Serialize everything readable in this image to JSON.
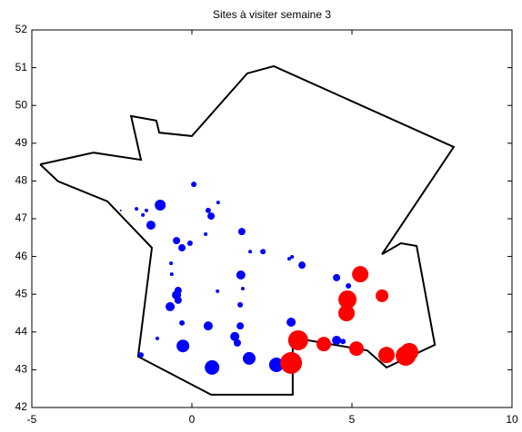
{
  "chart_data": {
    "type": "scatter",
    "title": "Sites à visiter semaine 3",
    "xlim": [
      -5,
      10
    ],
    "xticks": [
      -5,
      0,
      5,
      10
    ],
    "ylim": [
      42,
      52
    ],
    "yticks": [
      42,
      43,
      44,
      45,
      46,
      47,
      48,
      49,
      50,
      51,
      52
    ],
    "series": [
      {
        "mode": "line",
        "color": "#000000",
        "x": [
          -4.74,
          -3.07,
          -1.59,
          -1.9,
          -1.11,
          -1.02,
          0,
          1.73,
          2.56,
          8.18,
          5.94,
          6.53,
          7.02,
          7.59,
          6.08,
          5.48,
          3.15,
          3.15,
          0.6,
          -1.68,
          -1.25,
          -2.64,
          -4.18,
          -4.74
        ],
        "values": [
          48.44,
          48.75,
          48.56,
          49.72,
          49.6,
          49.28,
          49.19,
          50.85,
          51.04,
          48.9,
          46.06,
          46.35,
          46.28,
          43.66,
          43.06,
          43.51,
          43.85,
          42.34,
          42.34,
          43.35,
          46.23,
          47.46,
          47.99,
          48.44
        ]
      },
      {
        "mode": "markers",
        "color": "#0000ff",
        "x": [
          -0.99,
          -1.28,
          -1.53,
          -1.73,
          -1.42,
          0.06,
          0.51,
          0.6,
          0.82,
          -0.48,
          -0.31,
          -0.06,
          0.43,
          1.56,
          2.22,
          1.82,
          3.04,
          3.13,
          3.44,
          -0.65,
          -0.63,
          -0.43,
          -0.48,
          -0.43,
          -0.68,
          -0.31,
          1.53,
          0.8,
          1.59,
          1.51,
          0.51,
          1.51,
          1.34,
          1.42,
          -0.28,
          0.63,
          1.79,
          2.64,
          3.1,
          4.52,
          4.89,
          4.83,
          -1.08,
          -1.59,
          4.52,
          4.72,
          -2.22
        ],
        "values": [
          47.36,
          46.83,
          47.1,
          47.26,
          47.22,
          47.91,
          47.22,
          47.07,
          47.43,
          46.42,
          46.23,
          46.35,
          46.59,
          46.66,
          46.13,
          46.13,
          45.94,
          45.99,
          45.77,
          45.82,
          45.53,
          45.1,
          44.98,
          44.84,
          44.67,
          44.24,
          45.51,
          45.08,
          45.15,
          44.72,
          44.16,
          44.16,
          43.88,
          43.71,
          43.63,
          43.06,
          43.3,
          43.13,
          44.26,
          45.44,
          45.22,
          44.98,
          43.83,
          43.39,
          43.78,
          43.75,
          47.22
        ],
        "sizes": [
          6,
          5,
          2,
          2,
          2,
          3,
          3,
          4,
          2,
          4,
          4,
          3,
          2,
          4,
          3,
          2,
          2,
          2,
          4,
          2,
          2,
          4,
          5,
          4,
          5,
          3,
          5,
          2,
          2,
          3,
          5,
          4,
          5,
          4,
          7,
          8,
          7,
          8,
          5,
          4,
          3,
          2,
          2,
          3,
          5,
          3,
          1
        ]
      },
      {
        "mode": "markers",
        "color": "#ff0000",
        "x": [
          3.1,
          3.32,
          4.12,
          5.14,
          5.26,
          4.86,
          4.83,
          5.94,
          6.08,
          6.68,
          6.79
        ],
        "values": [
          43.18,
          43.78,
          43.68,
          43.56,
          45.53,
          44.86,
          44.5,
          44.96,
          43.39,
          43.37,
          43.47
        ],
        "sizes": [
          12,
          11,
          8,
          8,
          9,
          10,
          9,
          7,
          9,
          11,
          10
        ]
      }
    ]
  }
}
